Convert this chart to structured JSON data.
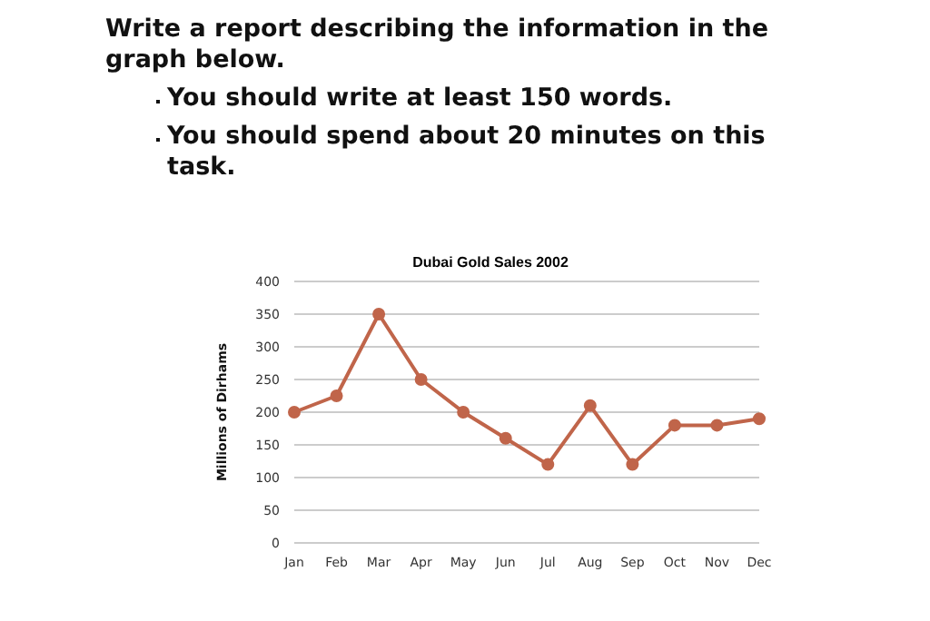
{
  "chart_data": {
    "type": "line",
    "title": "Dubai Gold Sales 2002",
    "ylabel": "Millions of Dirhams",
    "annotations": [
      "Write a report describing the information in the graph below.",
      "You should write at least 150 words.",
      "You should spend about 20 minutes on this task."
    ],
    "categories": [
      "Jan",
      "Feb",
      "Mar",
      "Apr",
      "May",
      "Jun",
      "Jul",
      "Aug",
      "Sep",
      "Oct",
      "Nov",
      "Dec"
    ],
    "series": [
      {
        "color": "#c0654a",
        "values": [
          200,
          225,
          350,
          250,
          200,
          160,
          120,
          210,
          120,
          180,
          180,
          190
        ]
      }
    ],
    "ylim": [
      0,
      400
    ],
    "yticks": [
      0,
      50,
      100,
      150,
      200,
      250,
      300,
      350,
      400
    ],
    "grid": "y",
    "marker": "circle",
    "legend": false
  }
}
